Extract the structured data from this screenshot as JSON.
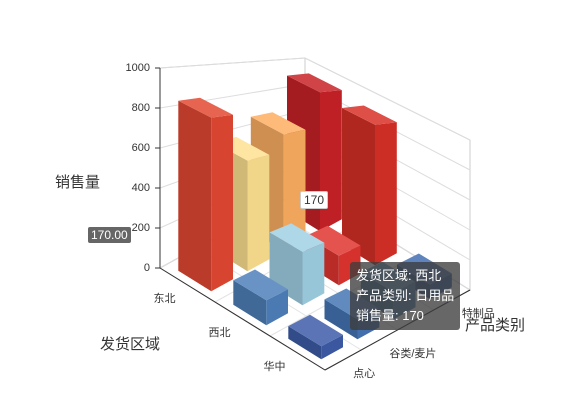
{
  "chart_data": {
    "type": "bar3d",
    "y_axis_name": "销售量",
    "x_axis_name": "发货区域",
    "z_axis_name": "产品类别",
    "regions": [
      "东北",
      "西北",
      "华中"
    ],
    "categories": [
      "点心",
      "谷类/麦片",
      null,
      "特制品"
    ],
    "series": [
      {
        "name": "东北",
        "values": [
          860,
          600,
          700,
          930
        ]
      },
      {
        "name": "西北",
        "values": [
          120,
          280,
          170,
          900
        ]
      },
      {
        "name": "华中",
        "values": [
          60,
          100,
          150,
          90
        ]
      }
    ],
    "ylim": [
      0,
      1000
    ],
    "yticks": [
      0,
      200,
      400,
      600,
      800,
      1000
    ],
    "grid": true,
    "color_scale": [
      "#313695",
      "#4575b4",
      "#74add1",
      "#abd9e9",
      "#e0f3f8",
      "#ffffbf",
      "#fee090",
      "#fdae61",
      "#f46d43",
      "#d73027",
      "#a50026"
    ],
    "highlight_color": "#e03530",
    "bar_label": "170",
    "axis_pointer_label": "170.00",
    "tooltip": [
      "发货区域: 西北",
      "产品类别: 日用品",
      "销售量: 170"
    ]
  }
}
